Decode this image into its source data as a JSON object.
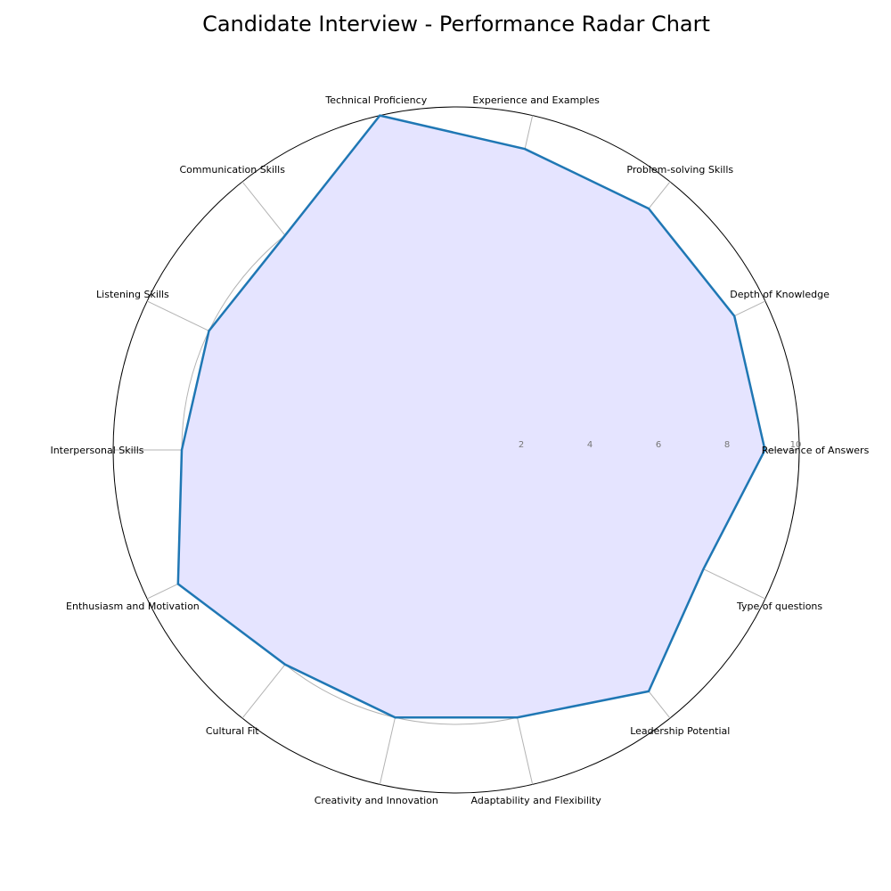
{
  "chart_data": {
    "type": "radar",
    "title": "Candidate Interview - Performance Radar Chart",
    "categories": [
      "Relevance of Answers",
      "Depth of Knowledge",
      "Problem-solving Skills",
      "Experience and Examples",
      "Technical Proficiency",
      "Communication Skills",
      "Listening Skills",
      "Interpersonal Skills",
      "Enthusiasm and Motivation",
      "Cultural Fit",
      "Creativity and Innovation",
      "Adaptability and Flexibility",
      "Leadership Potential",
      "Type of questions"
    ],
    "series": [
      {
        "values": [
          9,
          9,
          9,
          9,
          10,
          8,
          8,
          8,
          9,
          8,
          8,
          8,
          9,
          8
        ]
      }
    ],
    "rlim": [
      0,
      10
    ],
    "r_ticks": [
      "2",
      "4",
      "6",
      "8",
      "10"
    ],
    "grid": true,
    "colors": {
      "line": "#1f77b4",
      "fill": "#e5e4ff",
      "grid": "#b3b3b3",
      "outer_ring": "#000000",
      "tick_text": "#777777"
    }
  }
}
